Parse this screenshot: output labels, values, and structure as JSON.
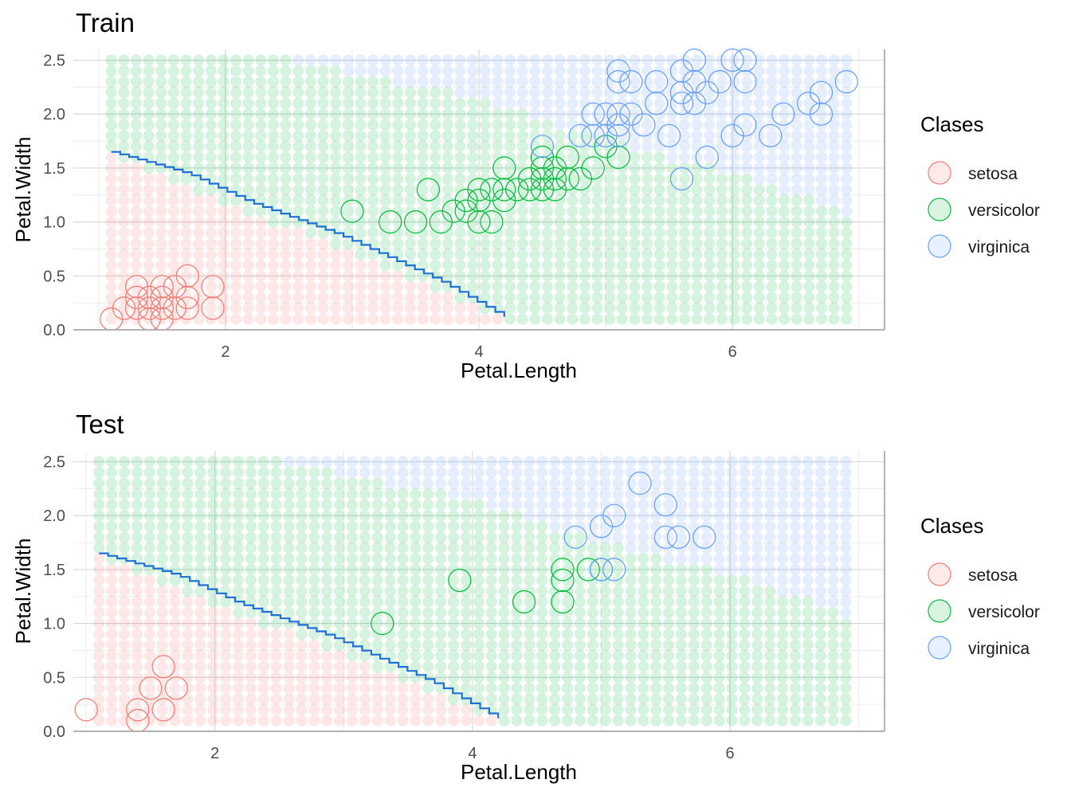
{
  "chart_data": [
    {
      "type": "scatter",
      "title": "Train",
      "xlabel": "Petal.Length",
      "ylabel": "Petal.Width",
      "xlim": [
        0.8,
        7.2
      ],
      "ylim": [
        0.0,
        2.6
      ],
      "x_ticks": [
        2,
        4,
        6
      ],
      "y_ticks": [
        0.0,
        0.5,
        1.0,
        1.5,
        2.0,
        2.5
      ],
      "x_tick_labels": [
        "2",
        "4",
        "6"
      ],
      "y_tick_labels": [
        "0.0",
        "0.5",
        "1.0",
        "1.5",
        "2.0",
        "2.5"
      ],
      "grid": true,
      "legend": {
        "title": "Clases",
        "position": "right"
      },
      "region_grid": {
        "x_range": [
          1.1,
          6.9
        ],
        "y_range": [
          0.1,
          2.5
        ],
        "nx": 60,
        "ny": 25
      },
      "region_colors": {
        "setosa": "#f8766d",
        "versicolor": "#00ba38",
        "virginica": "#619cff"
      },
      "boundaries": {
        "setosa_versicolor": {
          "x0": 1.1,
          "y0": 1.63,
          "x1": 4.2,
          "y1": 0.1
        },
        "versicolor_virginica": [
          [
            2.5,
            2.5
          ],
          [
            4.0,
            2.15
          ],
          [
            5.0,
            1.75
          ],
          [
            6.0,
            1.45
          ],
          [
            6.9,
            1.1
          ]
        ]
      },
      "decision_line": [
        [
          1.1,
          1.65
        ],
        [
          1.7,
          1.45
        ],
        [
          2.2,
          1.18
        ],
        [
          2.9,
          0.88
        ],
        [
          3.7,
          0.45
        ],
        [
          4.2,
          0.12
        ]
      ],
      "series": [
        {
          "name": "setosa",
          "color": "#f8766d",
          "points": [
            [
              1.1,
              0.1
            ],
            [
              1.2,
              0.2
            ],
            [
              1.3,
              0.2
            ],
            [
              1.3,
              0.3
            ],
            [
              1.3,
              0.4
            ],
            [
              1.4,
              0.1
            ],
            [
              1.4,
              0.2
            ],
            [
              1.4,
              0.3
            ],
            [
              1.5,
              0.1
            ],
            [
              1.5,
              0.2
            ],
            [
              1.5,
              0.3
            ],
            [
              1.5,
              0.4
            ],
            [
              1.6,
              0.2
            ],
            [
              1.6,
              0.4
            ],
            [
              1.7,
              0.2
            ],
            [
              1.7,
              0.3
            ],
            [
              1.7,
              0.5
            ],
            [
              1.9,
              0.2
            ],
            [
              1.9,
              0.4
            ]
          ]
        },
        {
          "name": "versicolor",
          "color": "#00ba38",
          "points": [
            [
              3.0,
              1.1
            ],
            [
              3.3,
              1.0
            ],
            [
              3.5,
              1.0
            ],
            [
              3.6,
              1.3
            ],
            [
              3.7,
              1.0
            ],
            [
              3.8,
              1.1
            ],
            [
              3.9,
              1.1
            ],
            [
              3.9,
              1.2
            ],
            [
              4.0,
              1.0
            ],
            [
              4.0,
              1.2
            ],
            [
              4.0,
              1.3
            ],
            [
              4.1,
              1.0
            ],
            [
              4.1,
              1.3
            ],
            [
              4.2,
              1.2
            ],
            [
              4.2,
              1.3
            ],
            [
              4.2,
              1.5
            ],
            [
              4.3,
              1.3
            ],
            [
              4.4,
              1.3
            ],
            [
              4.4,
              1.4
            ],
            [
              4.5,
              1.3
            ],
            [
              4.5,
              1.4
            ],
            [
              4.5,
              1.5
            ],
            [
              4.5,
              1.6
            ],
            [
              4.6,
              1.3
            ],
            [
              4.6,
              1.4
            ],
            [
              4.6,
              1.5
            ],
            [
              4.7,
              1.4
            ],
            [
              4.7,
              1.6
            ],
            [
              4.8,
              1.4
            ],
            [
              4.9,
              1.5
            ],
            [
              5.0,
              1.7
            ],
            [
              5.1,
              1.6
            ]
          ]
        },
        {
          "name": "virginica",
          "color": "#619cff",
          "points": [
            [
              4.5,
              1.7
            ],
            [
              4.8,
              1.8
            ],
            [
              4.9,
              1.8
            ],
            [
              4.9,
              2.0
            ],
            [
              5.0,
              2.0
            ],
            [
              5.0,
              1.8
            ],
            [
              5.1,
              1.8
            ],
            [
              5.1,
              1.9
            ],
            [
              5.1,
              2.0
            ],
            [
              5.1,
              2.3
            ],
            [
              5.1,
              2.4
            ],
            [
              5.2,
              2.0
            ],
            [
              5.2,
              2.3
            ],
            [
              5.3,
              1.9
            ],
            [
              5.4,
              2.1
            ],
            [
              5.4,
              2.3
            ],
            [
              5.5,
              1.8
            ],
            [
              5.6,
              1.4
            ],
            [
              5.6,
              2.1
            ],
            [
              5.6,
              2.2
            ],
            [
              5.6,
              2.4
            ],
            [
              5.7,
              2.1
            ],
            [
              5.7,
              2.3
            ],
            [
              5.7,
              2.5
            ],
            [
              5.8,
              1.6
            ],
            [
              5.8,
              2.2
            ],
            [
              5.9,
              2.3
            ],
            [
              6.0,
              1.8
            ],
            [
              6.0,
              2.5
            ],
            [
              6.1,
              1.9
            ],
            [
              6.1,
              2.3
            ],
            [
              6.1,
              2.5
            ],
            [
              6.3,
              1.8
            ],
            [
              6.4,
              2.0
            ],
            [
              6.6,
              2.1
            ],
            [
              6.7,
              2.0
            ],
            [
              6.7,
              2.2
            ],
            [
              6.9,
              2.3
            ]
          ]
        }
      ]
    },
    {
      "type": "scatter",
      "title": "Test",
      "xlabel": "Petal.Length",
      "ylabel": "Petal.Width",
      "xlim": [
        0.9,
        7.2
      ],
      "ylim": [
        0.0,
        2.6
      ],
      "x_ticks": [
        2,
        4,
        6
      ],
      "y_ticks": [
        0.0,
        0.5,
        1.0,
        1.5,
        2.0,
        2.5
      ],
      "x_tick_labels": [
        "2",
        "4",
        "6"
      ],
      "y_tick_labels": [
        "0.0",
        "0.5",
        "1.0",
        "1.5",
        "2.0",
        "2.5"
      ],
      "grid": true,
      "legend": {
        "title": "Clases",
        "position": "right"
      },
      "region_grid": {
        "x_range": [
          1.1,
          6.9
        ],
        "y_range": [
          0.1,
          2.5
        ],
        "nx": 60,
        "ny": 25
      },
      "region_colors": {
        "setosa": "#f8766d",
        "versicolor": "#00ba38",
        "virginica": "#619cff"
      },
      "boundaries": {
        "setosa_versicolor": {
          "x0": 1.1,
          "y0": 1.63,
          "x1": 4.2,
          "y1": 0.1
        },
        "versicolor_virginica": [
          [
            2.5,
            2.5
          ],
          [
            4.0,
            2.15
          ],
          [
            5.0,
            1.75
          ],
          [
            6.0,
            1.45
          ],
          [
            6.9,
            1.1
          ]
        ]
      },
      "decision_line": [
        [
          1.1,
          1.65
        ],
        [
          1.7,
          1.45
        ],
        [
          2.2,
          1.18
        ],
        [
          2.9,
          0.88
        ],
        [
          3.7,
          0.45
        ],
        [
          4.2,
          0.12
        ]
      ],
      "series": [
        {
          "name": "setosa",
          "color": "#f8766d",
          "points": [
            [
              1.0,
              0.2
            ],
            [
              1.4,
              0.2
            ],
            [
              1.4,
              0.1
            ],
            [
              1.5,
              0.4
            ],
            [
              1.6,
              0.6
            ],
            [
              1.6,
              0.2
            ],
            [
              1.7,
              0.4
            ]
          ]
        },
        {
          "name": "versicolor",
          "color": "#00ba38",
          "points": [
            [
              3.3,
              1.0
            ],
            [
              3.9,
              1.4
            ],
            [
              4.4,
              1.2
            ],
            [
              4.7,
              1.2
            ],
            [
              4.7,
              1.4
            ],
            [
              4.7,
              1.5
            ],
            [
              4.9,
              1.5
            ],
            [
              5.0,
              1.5
            ]
          ]
        },
        {
          "name": "virginica",
          "color": "#619cff",
          "points": [
            [
              4.8,
              1.8
            ],
            [
              5.0,
              1.9
            ],
            [
              5.0,
              1.5
            ],
            [
              5.1,
              1.5
            ],
            [
              5.1,
              2.0
            ],
            [
              5.3,
              2.3
            ],
            [
              5.5,
              2.1
            ],
            [
              5.5,
              1.8
            ],
            [
              5.6,
              1.8
            ],
            [
              5.8,
              1.8
            ]
          ]
        }
      ]
    }
  ]
}
